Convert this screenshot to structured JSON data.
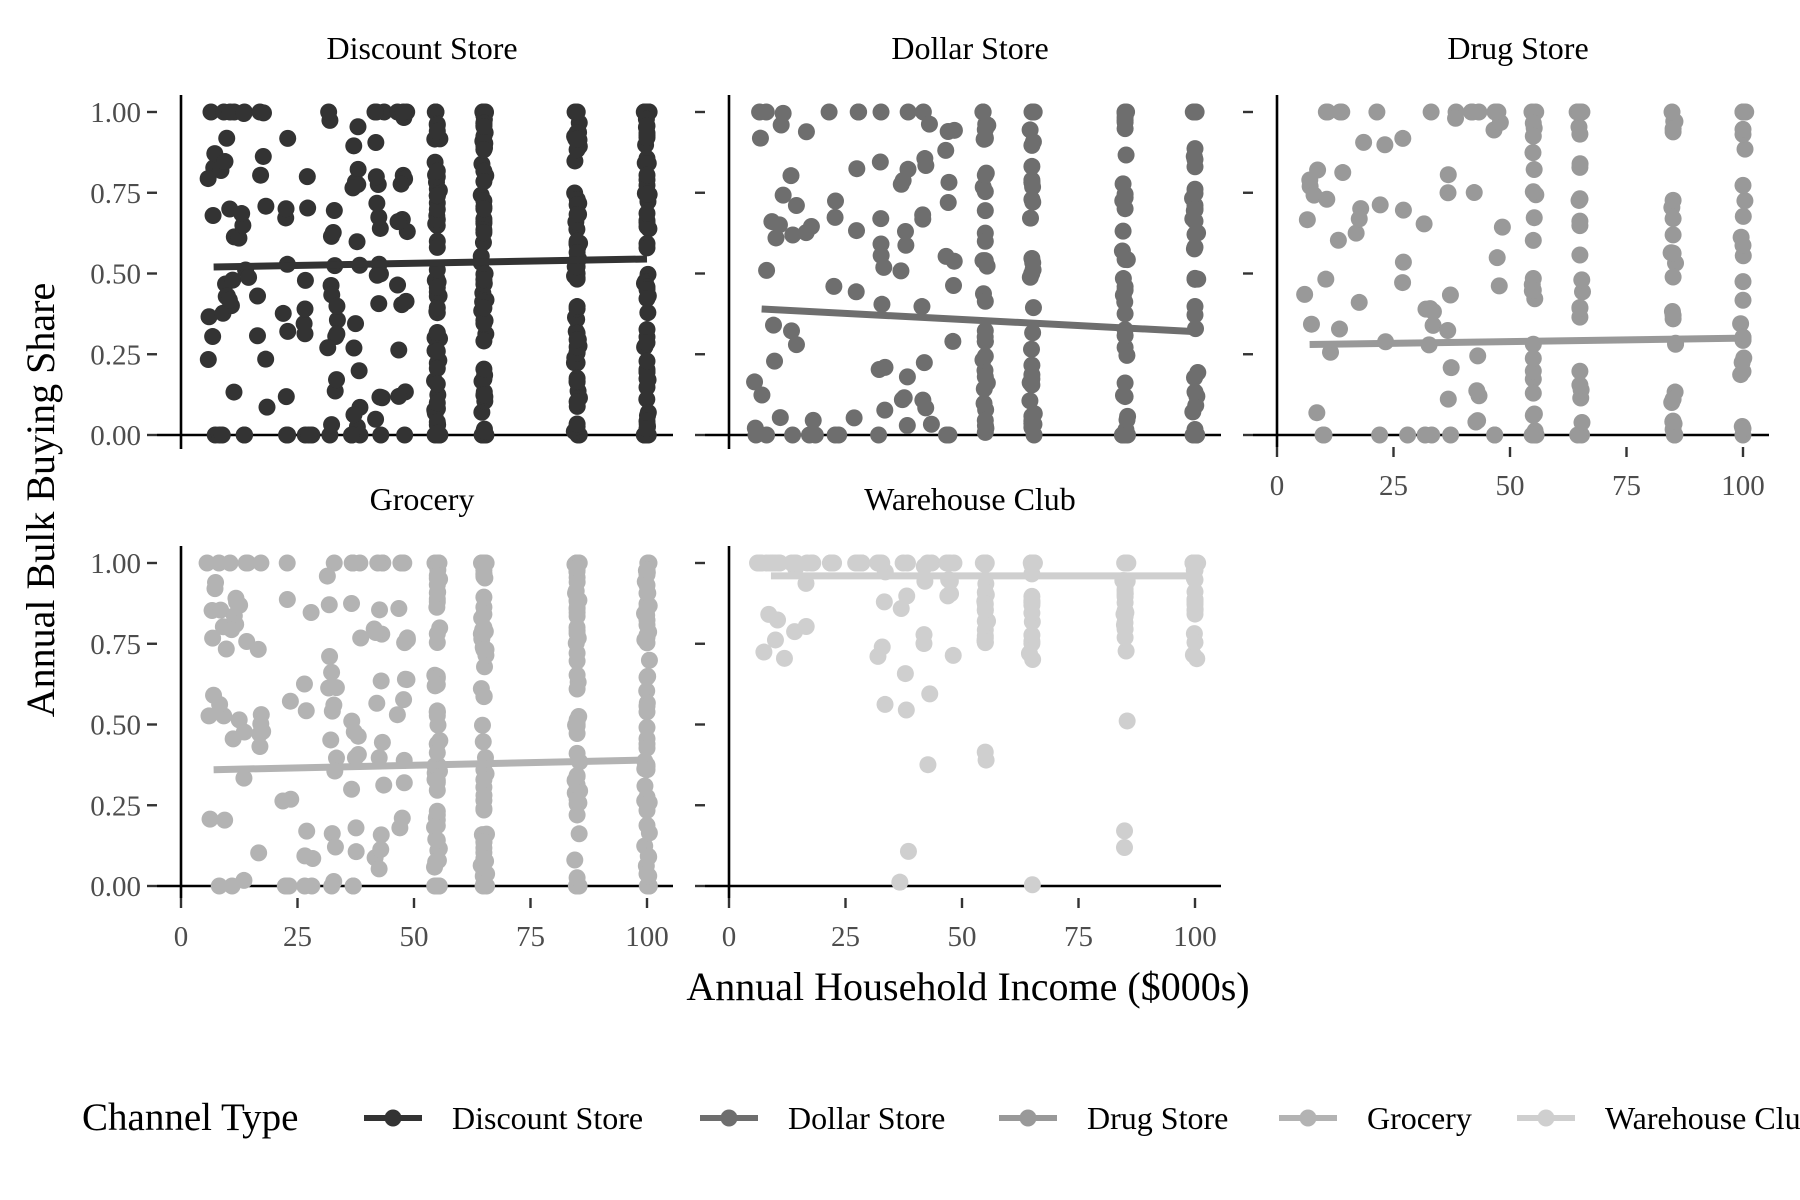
{
  "chart_data": {
    "type": "scatter",
    "x_label": "Annual Household Income ($000s)",
    "y_label": "Annual Bulk Buying Share",
    "x_ticks": [
      0,
      25,
      50,
      75,
      100
    ],
    "y_ticks": [
      0,
      0.25,
      0.5,
      0.75,
      1
    ],
    "y_tick_labels": [
      "0.00",
      "0.25",
      "0.50",
      "0.75",
      "1.00"
    ],
    "xlim": [
      0,
      100
    ],
    "ylim": [
      0,
      1
    ],
    "income_levels": [
      6.5,
      9,
      11,
      13.5,
      17.5,
      22.5,
      27.5,
      32.5,
      37.5,
      42.5,
      47.5,
      55,
      65,
      85,
      100
    ],
    "legend_title": "Channel Type",
    "legend_position": "bottom",
    "panels": [
      {
        "name": "Discount Store",
        "color": "#333333",
        "density": 1.0,
        "fit": [
          0.52,
          0.545
        ]
      },
      {
        "name": "Dollar Store",
        "color": "#6e6e6e",
        "density": 0.55,
        "fit": [
          0.39,
          0.32
        ]
      },
      {
        "name": "Drug Store",
        "color": "#999999",
        "density": 0.4,
        "fit": [
          0.28,
          0.3
        ]
      },
      {
        "name": "Grocery",
        "color": "#b3b3b3",
        "density": 0.9,
        "fit": [
          0.36,
          0.39
        ]
      },
      {
        "name": "Warehouse Club",
        "color": "#cfcfcf",
        "density": 0.35,
        "fit": [
          0.96,
          0.96
        ]
      }
    ]
  }
}
